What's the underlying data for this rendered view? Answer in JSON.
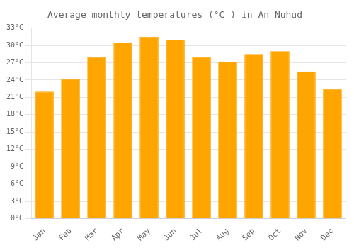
{
  "chart_data": {
    "type": "bar",
    "title": "Average monthly temperatures (°C ) in An Nuhūd",
    "categories": [
      "Jan",
      "Feb",
      "Mar",
      "Apr",
      "May",
      "Jun",
      "Jul",
      "Aug",
      "Sep",
      "Oct",
      "Nov",
      "Dec"
    ],
    "values": [
      22,
      24.2,
      28,
      30.5,
      31.5,
      31,
      28,
      27.2,
      28.5,
      29,
      25.5,
      22.5
    ],
    "color": "#FFA500",
    "ylim": [
      0,
      33
    ],
    "yticks": [
      {
        "value": 0,
        "label": "0°C"
      },
      {
        "value": 3,
        "label": "3°C"
      },
      {
        "value": 6,
        "label": "6°C"
      },
      {
        "value": 9,
        "label": "9°C"
      },
      {
        "value": 12,
        "label": "12°C"
      },
      {
        "value": 15,
        "label": "15°C"
      },
      {
        "value": 18,
        "label": "18°C"
      },
      {
        "value": 21,
        "label": "21°C"
      },
      {
        "value": 24,
        "label": "24°C"
      },
      {
        "value": 27,
        "label": "27°C"
      },
      {
        "value": 30,
        "label": "30°C"
      },
      {
        "value": 33,
        "label": "33°C"
      }
    ],
    "grid": true
  }
}
